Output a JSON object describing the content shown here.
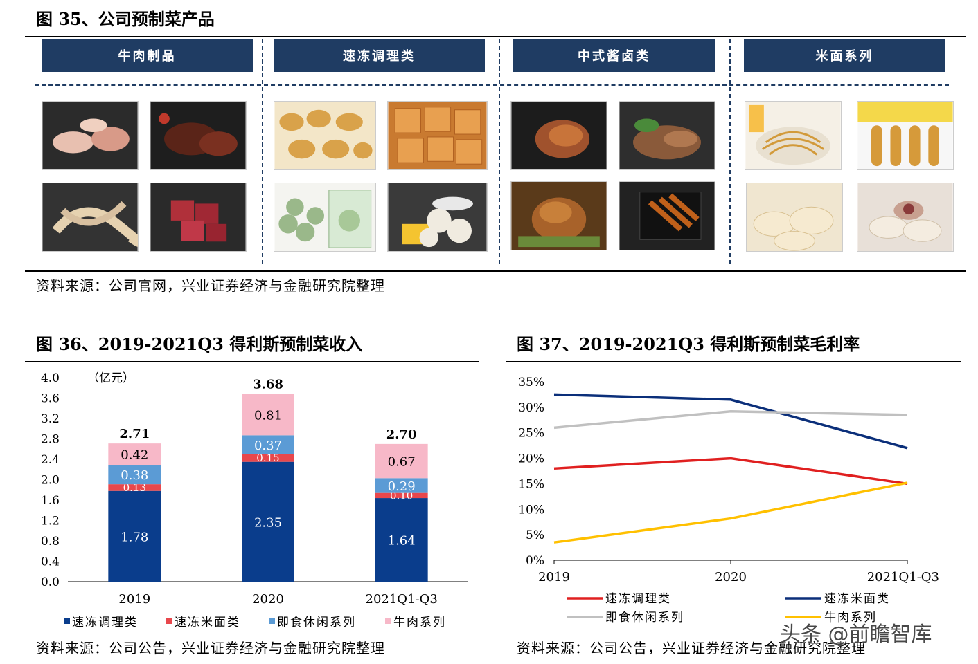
{
  "fig35": {
    "title": "图 35、公司预制菜产品",
    "categories": [
      {
        "label": "牛肉制品"
      },
      {
        "label": "速冻调理类"
      },
      {
        "label": "中式酱卤类"
      },
      {
        "label": "米面系列"
      }
    ],
    "source": "资料来源：公司官网，兴业证券经济与金融研究院整理"
  },
  "fig36": {
    "title": "图 36、2019-2021Q3 得利斯预制菜收入",
    "source": "资料来源：公司公告，兴业证券经济与金融研究院整理",
    "chart_data": {
      "type": "bar",
      "stacked": true,
      "unit_label": "（亿元）",
      "categories": [
        "2019",
        "2020",
        "2021Q1-Q3"
      ],
      "series": [
        {
          "name": "速冻调理类",
          "color": "#0a3d8c",
          "values": [
            1.78,
            2.35,
            1.64
          ]
        },
        {
          "name": "速冻米面类",
          "color": "#e8474c",
          "values": [
            0.13,
            0.15,
            0.1
          ]
        },
        {
          "name": "即食休闲系列",
          "color": "#5b9bd5",
          "values": [
            0.38,
            0.37,
            0.29
          ]
        },
        {
          "name": "牛肉系列",
          "color": "#f7b8c8",
          "values": [
            0.42,
            0.81,
            0.67
          ]
        }
      ],
      "totals": [
        2.71,
        3.68,
        2.7
      ],
      "total_labels": [
        "2.71",
        "3.68",
        "2.70"
      ],
      "value_labels": [
        [
          "1.78",
          "2.35",
          "1.64"
        ],
        [
          "0.13",
          "0.15",
          "0.10"
        ],
        [
          "0.38",
          "0.37",
          "0.29"
        ],
        [
          "0.42",
          "0.81",
          "0.67"
        ]
      ],
      "ylim": [
        0,
        4.0
      ],
      "yticks": [
        "0.0",
        "0.4",
        "0.8",
        "1.2",
        "1.6",
        "2.0",
        "2.4",
        "2.8",
        "3.2",
        "3.6",
        "4.0"
      ],
      "legend_position": "bottom"
    }
  },
  "fig37": {
    "title": "图 37、2019-2021Q3 得利斯预制菜毛利率",
    "source": "资料来源：公司公告，兴业证券经济与金融研究院整理",
    "chart_data": {
      "type": "line",
      "categories": [
        "2019",
        "2020",
        "2021Q1-Q3"
      ],
      "series": [
        {
          "name": "速冻调理类",
          "color": "#e02020",
          "values": [
            18.0,
            20.0,
            15.0
          ]
        },
        {
          "name": "速冻米面类",
          "color": "#0b2f7a",
          "values": [
            32.5,
            31.5,
            22.0
          ]
        },
        {
          "name": "即食休闲系列",
          "color": "#c0c0c0",
          "values": [
            26.0,
            29.2,
            28.5
          ]
        },
        {
          "name": "牛肉系列",
          "color": "#ffc000",
          "values": [
            3.5,
            8.2,
            15.2
          ]
        }
      ],
      "ylim": [
        0,
        35
      ],
      "yticks": [
        "0%",
        "5%",
        "10%",
        "15%",
        "20%",
        "25%",
        "30%",
        "35%"
      ],
      "legend_position": "bottom"
    }
  },
  "watermark": "头条 @前瞻智库",
  "icons": {
    "photo": "food-photo-icon"
  }
}
